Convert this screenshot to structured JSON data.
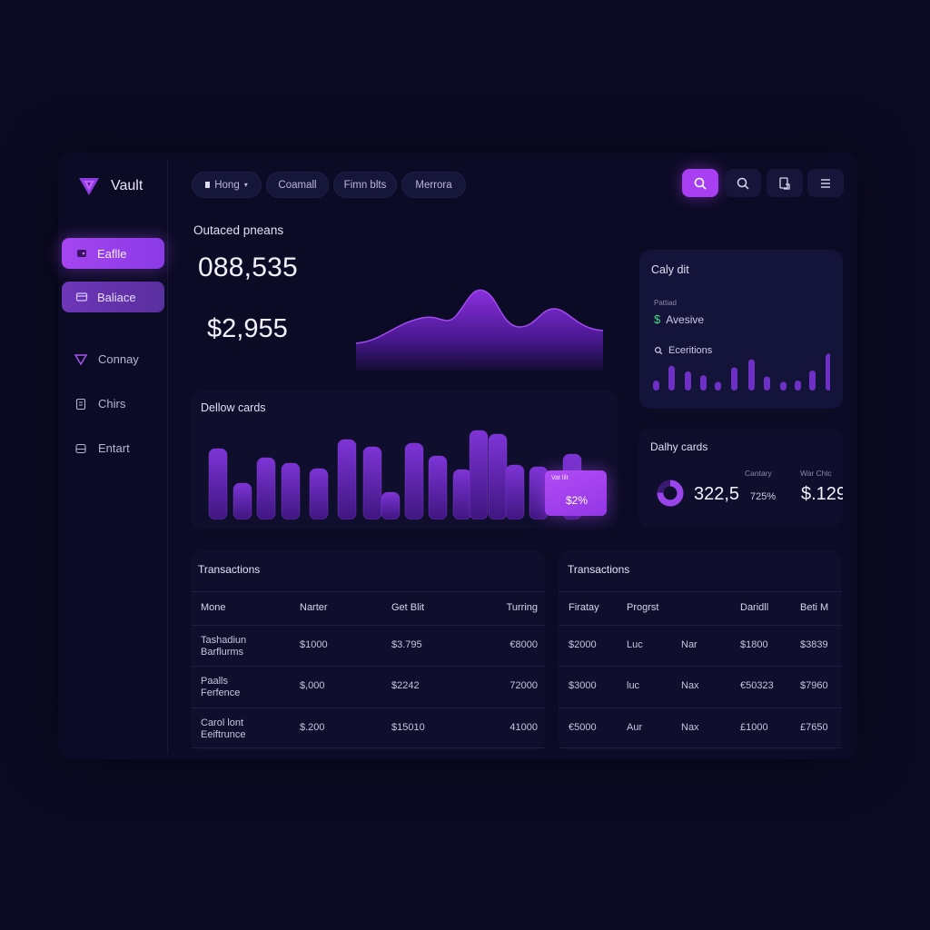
{
  "brand": {
    "name": "Vault"
  },
  "sidebar": {
    "items": [
      {
        "label": "Eaflle",
        "active": true
      },
      {
        "label": "Baliace",
        "active": true
      },
      {
        "label": "Connay"
      },
      {
        "label": "Chirs"
      },
      {
        "label": "Entart"
      }
    ]
  },
  "top_nav": {
    "pills": [
      "Hong",
      "Coamall",
      "Fimn blts",
      "Merrora"
    ]
  },
  "colors": {
    "accent": "#a83ff2",
    "background": "#0b0a22",
    "positive": "#3ddc84"
  },
  "overview": {
    "title": "Outaced pneans",
    "big_number": "088,535",
    "amount": "$2,955"
  },
  "right_card": {
    "title": "Caly dit",
    "small_label": "Pattiad",
    "row1": "Avesive",
    "row2": "Eceritions",
    "row1_icon": "dollar-icon",
    "row2_icon": "search-icon",
    "mini_bars": [
      0.25,
      0.62,
      0.48,
      0.38,
      0.22,
      0.58,
      0.78,
      0.35,
      0.22,
      0.25,
      0.5,
      0.92
    ]
  },
  "bar_card": {
    "title": "Dellow cards",
    "tooltip_label": "Vat lilt",
    "tooltip_value": "$2%"
  },
  "chart_data": {
    "type": "bar",
    "title": "Dellow cards",
    "values": [
      0.78,
      0.4,
      0.68,
      0.62,
      0.56,
      0.88,
      0.8,
      0.3,
      0.84,
      0.7,
      0.55,
      0.98,
      0.94,
      0.6,
      0.58,
      0.72
    ],
    "ylim": [
      0,
      1
    ]
  },
  "daily": {
    "title": "Dalhy cards",
    "label1": "Cantary",
    "label2": "War Chlc",
    "value": "322,5",
    "pct": "725%",
    "value2": "$.129"
  },
  "tables": [
    {
      "title": "Transactions",
      "headers": [
        "Mone",
        "Narter",
        "Get Blit",
        "Turring"
      ],
      "rows": [
        [
          "Tashadiun\nBarflurms",
          "$1000",
          "$3.795",
          "€8000"
        ],
        [
          "Paalls\nFerfence",
          "$,000",
          "$2242",
          "72000"
        ],
        [
          "Carol lont\nEeiftrunce",
          "$.200",
          "$15010",
          "41000"
        ]
      ]
    },
    {
      "title": "Transactions",
      "headers": [
        "Firatay",
        "Progrst",
        "",
        "Daridll",
        "Beti M"
      ],
      "rows": [
        [
          "$2000",
          "Luc",
          "Nar",
          "$1800",
          "$3839"
        ],
        [
          "$3000",
          "luc",
          "Nax",
          "€50323",
          "$7960"
        ],
        [
          "€5000",
          "Aur",
          "Nax",
          "£1000",
          "£7650"
        ]
      ]
    }
  ]
}
